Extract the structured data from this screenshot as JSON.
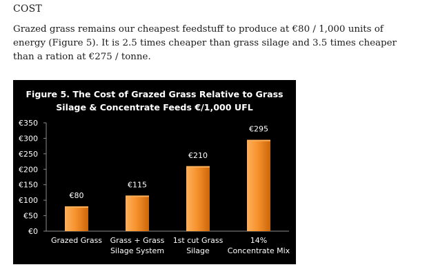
{
  "section_heading": "COST",
  "paragraph": "Grazed grass remains our cheapest feedstuff to produce at €80 / 1,000 units of energy (Figure 5).  It is 2.5 times cheaper than grass silage and 3.5 times cheaper than a ration at €275 / tonne.",
  "chart_data": {
    "type": "bar",
    "title_lines": [
      "Figure 5. The Cost of Grazed Grass Relative to Grass",
      "Silage & Concentrate Feeds €/1,000 UFL"
    ],
    "categories": [
      [
        "Grazed Grass"
      ],
      [
        "Grass + Grass",
        "Silage System"
      ],
      [
        "1st cut Grass",
        "Silage"
      ],
      [
        "14%",
        "Concentrate Mix"
      ]
    ],
    "values": [
      80,
      115,
      210,
      295
    ],
    "data_labels": [
      "€80",
      "€115",
      "€210",
      "€295"
    ],
    "y_ticks": [
      {
        "value": 0,
        "label": "€0"
      },
      {
        "value": 50,
        "label": "€50"
      },
      {
        "value": 100,
        "label": "€100"
      },
      {
        "value": 150,
        "label": "€150"
      },
      {
        "value": 200,
        "label": "€200"
      },
      {
        "value": 250,
        "label": "€250"
      },
      {
        "value": 300,
        "label": "€300"
      },
      {
        "value": 350,
        "label": "€350"
      }
    ],
    "ylim": [
      0,
      350
    ],
    "grid": false,
    "legend": "none",
    "colors": {
      "bar_light": "#fcb05a",
      "bar_mid": "#f7932f",
      "bar_dark": "#cc6608",
      "background": "#000000",
      "text": "#ffffff"
    }
  }
}
